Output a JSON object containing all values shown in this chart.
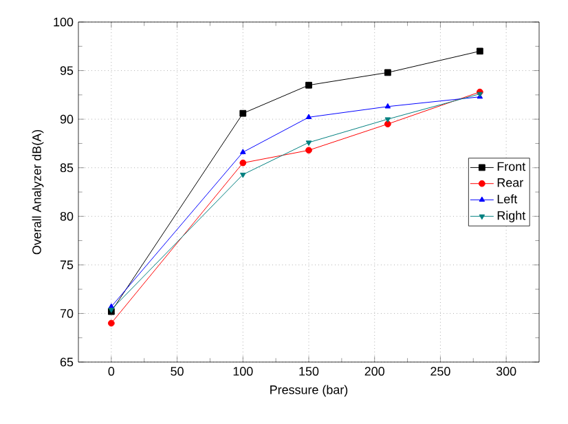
{
  "chart_data": {
    "type": "line",
    "xlabel": "Pressure (bar)",
    "ylabel": "Overall Analyzer dB(A)",
    "x": [
      0,
      100,
      150,
      210,
      280
    ],
    "series": [
      {
        "name": "Front",
        "color": "#000000",
        "marker": "square",
        "values": [
          70.2,
          90.6,
          93.5,
          94.8,
          97.0
        ]
      },
      {
        "name": "Rear",
        "color": "#ff0000",
        "marker": "circle",
        "values": [
          69.0,
          85.5,
          86.8,
          89.5,
          92.8
        ]
      },
      {
        "name": "Left",
        "color": "#0000ff",
        "marker": "triangle",
        "values": [
          70.7,
          86.6,
          90.2,
          91.3,
          92.3
        ]
      },
      {
        "name": "Right",
        "color": "#008080",
        "marker": "triangle-down",
        "values": [
          70.4,
          84.3,
          87.6,
          90.0,
          92.6
        ]
      }
    ],
    "xlim": [
      -25,
      325
    ],
    "ylim": [
      65,
      100
    ],
    "xticks": [
      0,
      50,
      100,
      150,
      200,
      250,
      300
    ],
    "yticks": [
      65,
      70,
      75,
      80,
      85,
      90,
      95,
      100
    ],
    "grid": true,
    "legend": "right",
    "line_style": "solid"
  }
}
